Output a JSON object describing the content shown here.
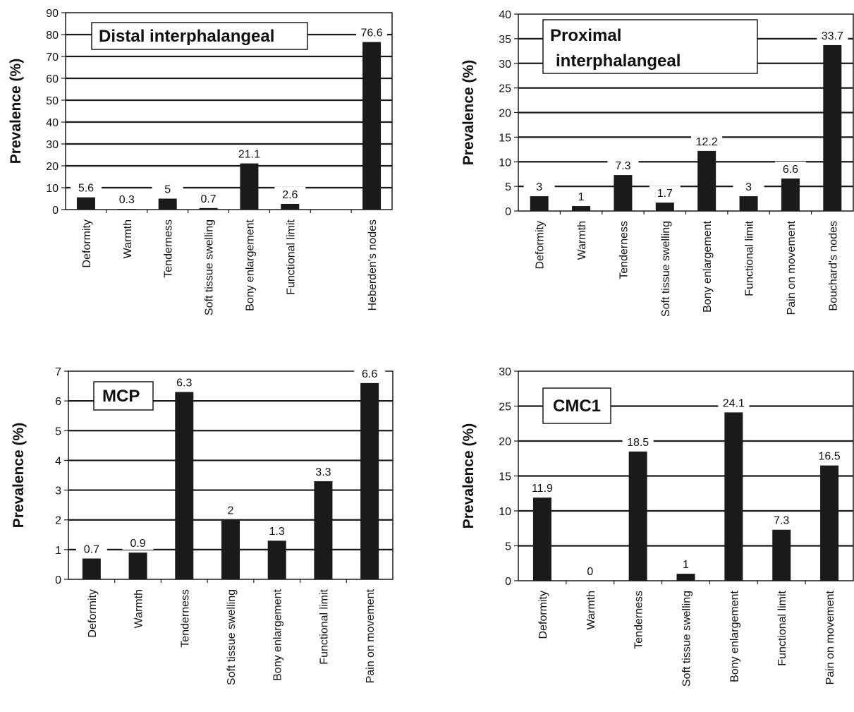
{
  "colors": {
    "bar": "#1a1a1a",
    "grid": "#1a1a1a",
    "text": "#111111",
    "background": "#ffffff"
  },
  "chart_data": [
    {
      "type": "bar",
      "title": "Distal interphalangeal",
      "ylabel": "Prevalence (%)",
      "xlabel": "",
      "ylim": [
        0,
        90
      ],
      "yticks": [
        0,
        10,
        20,
        30,
        40,
        50,
        60,
        70,
        80,
        90
      ],
      "grid": true,
      "legend": "none",
      "categories": [
        "Deformity",
        "Warmth",
        "Tenderness",
        "Soft tissue swelling",
        "Bony enlargement",
        "Functional limit",
        "",
        "Heberden's nodes"
      ],
      "values": [
        5.6,
        0.3,
        5,
        0.7,
        21.1,
        2.6,
        null,
        76.6
      ],
      "data_labels": [
        "5.6",
        "0.3",
        "5",
        "0.7",
        "21.1",
        "2.6",
        "",
        "76.6"
      ]
    },
    {
      "type": "bar",
      "title": "Proximal interphalangeal",
      "ylabel": "Prevalence (%)",
      "xlabel": "",
      "ylim": [
        0,
        40
      ],
      "yticks": [
        0,
        5,
        10,
        15,
        20,
        25,
        30,
        35,
        40
      ],
      "grid": true,
      "legend": "none",
      "categories": [
        "Deformity",
        "Warmth",
        "Tenderness",
        "Soft tissue swelling",
        "Bony enlargement",
        "Functional limit",
        "Pain on movement",
        "Bouchard's nodes"
      ],
      "values": [
        3,
        1,
        7.3,
        1.7,
        12.2,
        3,
        6.6,
        33.7
      ],
      "data_labels": [
        "3",
        "1",
        "7.3",
        "1.7",
        "12.2",
        "3",
        "6.6",
        "33.7"
      ]
    },
    {
      "type": "bar",
      "title": "MCP",
      "ylabel": "Prevalence (%)",
      "xlabel": "",
      "ylim": [
        0,
        7
      ],
      "yticks": [
        0,
        1,
        2,
        3,
        4,
        5,
        6,
        7
      ],
      "grid": true,
      "legend": "none",
      "categories": [
        "Deformity",
        "Warmth",
        "Tenderness",
        "Soft tissue swelling",
        "Bony enlargement",
        "Functional limit",
        "Pain on movement"
      ],
      "values": [
        0.7,
        0.9,
        6.3,
        2,
        1.3,
        3.3,
        6.6
      ],
      "data_labels": [
        "0.7",
        "0.9",
        "6.3",
        "2",
        "1.3",
        "3.3",
        "6.6"
      ]
    },
    {
      "type": "bar",
      "title": "CMC1",
      "ylabel": "Prevalence (%)",
      "xlabel": "",
      "ylim": [
        0,
        30
      ],
      "yticks": [
        0,
        5,
        10,
        15,
        20,
        25,
        30
      ],
      "grid": true,
      "legend": "none",
      "categories": [
        "Deformity",
        "Warmth",
        "Tenderness",
        "Soft tissue swelling",
        "Bony enlargement",
        "Functional limit",
        "Pain on movement"
      ],
      "values": [
        11.9,
        0,
        18.5,
        1,
        24.1,
        7.3,
        16.5
      ],
      "data_labels": [
        "11.9",
        "0",
        "18.5",
        "1",
        "24.1",
        "7.3",
        "16.5"
      ]
    }
  ]
}
